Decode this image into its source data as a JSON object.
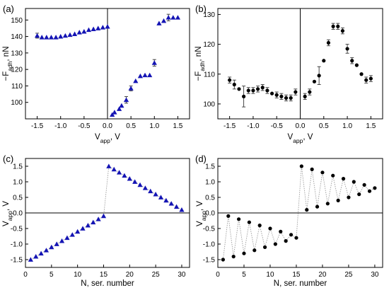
{
  "chart_data": [
    {
      "id": "a",
      "panel_label": "(a)",
      "type": "scatter",
      "marker": "triangle",
      "color": "#1414b4",
      "xlabel": {
        "base": "V",
        "sub": "app",
        "rest": ", V"
      },
      "ylabel": {
        "base": "−F",
        "sub": "adh",
        "rest": ", nN"
      },
      "xlim": [
        -1.75,
        1.75
      ],
      "ylim": [
        90,
        157
      ],
      "xticks": [
        -1.5,
        -1.0,
        -0.5,
        0.0,
        0.5,
        1.0,
        1.5
      ],
      "xtick_labels": [
        "-1.5",
        "-1.0",
        "-0.5",
        "0.0",
        "0.5",
        "1.0",
        "1.5"
      ],
      "yticks": [
        100,
        110,
        120,
        130,
        140,
        150
      ],
      "ytick_labels": [
        "100",
        "110",
        "120",
        "130",
        "140",
        "150"
      ],
      "zero_lines": {
        "vertical": 0
      },
      "connect_points": false,
      "points": [
        {
          "x": -1.5,
          "y": 140.5,
          "err": 1.5
        },
        {
          "x": -1.4,
          "y": 139.5
        },
        {
          "x": -1.3,
          "y": 139.5
        },
        {
          "x": -1.2,
          "y": 139.5
        },
        {
          "x": -1.1,
          "y": 139.5
        },
        {
          "x": -1.0,
          "y": 140.0
        },
        {
          "x": -0.9,
          "y": 140.5
        },
        {
          "x": -0.8,
          "y": 141.0
        },
        {
          "x": -0.7,
          "y": 141.5
        },
        {
          "x": -0.6,
          "y": 142.5
        },
        {
          "x": -0.5,
          "y": 143.0
        },
        {
          "x": -0.4,
          "y": 144.0
        },
        {
          "x": -0.3,
          "y": 144.5
        },
        {
          "x": -0.2,
          "y": 145.0
        },
        {
          "x": -0.1,
          "y": 145.5
        },
        {
          "x": 0.0,
          "y": 146.0
        },
        {
          "x": 0.1,
          "y": 92.5
        },
        {
          "x": 0.15,
          "y": 94.0
        },
        {
          "x": 0.25,
          "y": 96.0
        },
        {
          "x": 0.3,
          "y": 98.0
        },
        {
          "x": 0.4,
          "y": 101.5,
          "err": 2.0
        },
        {
          "x": 0.5,
          "y": 108.5,
          "err": 1.5
        },
        {
          "x": 0.6,
          "y": 113.0
        },
        {
          "x": 0.7,
          "y": 116.0
        },
        {
          "x": 0.8,
          "y": 116.5
        },
        {
          "x": 0.9,
          "y": 116.5
        },
        {
          "x": 1.0,
          "y": 124.0,
          "err": 2.0
        },
        {
          "x": 1.1,
          "y": 148.0
        },
        {
          "x": 1.2,
          "y": 149.5
        },
        {
          "x": 1.3,
          "y": 151.5,
          "err": 2.0
        },
        {
          "x": 1.4,
          "y": 151.5
        },
        {
          "x": 1.5,
          "y": 151.5
        }
      ]
    },
    {
      "id": "b",
      "panel_label": "(b)",
      "type": "scatter",
      "marker": "circle",
      "color": "#000000",
      "xlabel": {
        "base": "V",
        "sub": "app",
        "rest": ", V"
      },
      "ylabel": {
        "base": "−F",
        "sub": "adh",
        "rest": ", nN"
      },
      "xlim": [
        -1.75,
        1.75
      ],
      "ylim": [
        95,
        132
      ],
      "xticks": [
        -1.5,
        -1.0,
        -0.5,
        0.0,
        0.5,
        1.0,
        1.5
      ],
      "xtick_labels": [
        "-1.5",
        "-1.0",
        "-0.5",
        "0.0",
        "0.5",
        "1.0",
        "1.5"
      ],
      "yticks": [
        100,
        110,
        120,
        130
      ],
      "ytick_labels": [
        "100",
        "110",
        "120",
        "130"
      ],
      "zero_lines": {
        "vertical": 0
      },
      "connect_points": false,
      "points": [
        {
          "x": -1.5,
          "y": 108.0,
          "err": 1.0
        },
        {
          "x": -1.4,
          "y": 106.5,
          "err": 1.5
        },
        {
          "x": -1.3,
          "y": 105.0
        },
        {
          "x": -1.2,
          "y": 102.5,
          "err": 3.5
        },
        {
          "x": -1.1,
          "y": 104.5,
          "err": 1.0
        },
        {
          "x": -1.0,
          "y": 104.5,
          "err": 1.0
        },
        {
          "x": -0.9,
          "y": 105.0,
          "err": 1.0
        },
        {
          "x": -0.8,
          "y": 105.5,
          "err": 1.0
        },
        {
          "x": -0.7,
          "y": 104.5,
          "err": 1.0
        },
        {
          "x": -0.6,
          "y": 103.5
        },
        {
          "x": -0.5,
          "y": 103.0,
          "err": 1.0
        },
        {
          "x": -0.4,
          "y": 102.5,
          "err": 1.0
        },
        {
          "x": -0.3,
          "y": 102.0,
          "err": 1.0
        },
        {
          "x": -0.2,
          "y": 102.0,
          "err": 1.0
        },
        {
          "x": -0.1,
          "y": 104.0,
          "err": 1.0
        },
        {
          "x": 0.1,
          "y": 102.5,
          "err": 1.0
        },
        {
          "x": 0.2,
          "y": 104.0,
          "err": 1.0
        },
        {
          "x": 0.3,
          "y": 107.5
        },
        {
          "x": 0.4,
          "y": 109.5,
          "err": 3.0
        },
        {
          "x": 0.5,
          "y": 114.5
        },
        {
          "x": 0.6,
          "y": 120.5,
          "err": 1.0
        },
        {
          "x": 0.7,
          "y": 126.0,
          "err": 1.0
        },
        {
          "x": 0.8,
          "y": 126.0,
          "err": 1.0
        },
        {
          "x": 0.9,
          "y": 124.5,
          "err": 1.0
        },
        {
          "x": 1.0,
          "y": 118.5,
          "err": 1.5
        },
        {
          "x": 1.1,
          "y": 114.5,
          "err": 1.0
        },
        {
          "x": 1.2,
          "y": 113.0
        },
        {
          "x": 1.3,
          "y": 110.0
        },
        {
          "x": 1.4,
          "y": 108.0,
          "err": 1.0
        },
        {
          "x": 1.5,
          "y": 108.5,
          "err": 1.0
        }
      ]
    },
    {
      "id": "c",
      "panel_label": "(c)",
      "type": "line",
      "marker": "triangle",
      "color": "#1414b4",
      "line_color": "#9a9a9a",
      "xlabel": {
        "base": "N, ser. number",
        "sub": "",
        "rest": ""
      },
      "ylabel": {
        "base": "V",
        "sub": "app",
        "rest": ", V"
      },
      "xlim": [
        0,
        31.5
      ],
      "ylim": [
        -1.75,
        1.75
      ],
      "xticks": [
        0,
        5,
        10,
        15,
        20,
        25,
        30
      ],
      "xtick_labels": [
        "0",
        "5",
        "10",
        "15",
        "20",
        "25",
        "30"
      ],
      "yticks": [
        -1.5,
        -1.0,
        -0.5,
        0.0,
        0.5,
        1.0,
        1.5
      ],
      "ytick_labels": [
        "-1.5",
        "-1.0",
        "-0.5",
        "0.0",
        "0.5",
        "1.0",
        "1.5"
      ],
      "zero_lines": {
        "horizontal": 0
      },
      "connect_points": true,
      "points": [
        {
          "x": 1,
          "y": -1.5
        },
        {
          "x": 2,
          "y": -1.4
        },
        {
          "x": 3,
          "y": -1.3
        },
        {
          "x": 4,
          "y": -1.2
        },
        {
          "x": 5,
          "y": -1.1
        },
        {
          "x": 6,
          "y": -1.0
        },
        {
          "x": 7,
          "y": -0.9
        },
        {
          "x": 8,
          "y": -0.8
        },
        {
          "x": 9,
          "y": -0.7
        },
        {
          "x": 10,
          "y": -0.6
        },
        {
          "x": 11,
          "y": -0.5
        },
        {
          "x": 12,
          "y": -0.4
        },
        {
          "x": 13,
          "y": -0.3
        },
        {
          "x": 14,
          "y": -0.2
        },
        {
          "x": 15,
          "y": -0.1
        },
        {
          "x": 16,
          "y": 1.5
        },
        {
          "x": 17,
          "y": 1.4
        },
        {
          "x": 18,
          "y": 1.3
        },
        {
          "x": 19,
          "y": 1.2
        },
        {
          "x": 20,
          "y": 1.1
        },
        {
          "x": 21,
          "y": 1.0
        },
        {
          "x": 22,
          "y": 0.9
        },
        {
          "x": 23,
          "y": 0.8
        },
        {
          "x": 24,
          "y": 0.7
        },
        {
          "x": 25,
          "y": 0.6
        },
        {
          "x": 26,
          "y": 0.5
        },
        {
          "x": 27,
          "y": 0.4
        },
        {
          "x": 28,
          "y": 0.3
        },
        {
          "x": 29,
          "y": 0.2
        },
        {
          "x": 30,
          "y": 0.1
        }
      ]
    },
    {
      "id": "d",
      "panel_label": "(d)",
      "type": "line",
      "marker": "circle",
      "color": "#000000",
      "line_color": "#9a9a9a",
      "xlabel": {
        "base": "N, ser. number",
        "sub": "",
        "rest": ""
      },
      "ylabel": {
        "base": "V",
        "sub": "app",
        "rest": ", V"
      },
      "xlim": [
        0,
        31.5
      ],
      "ylim": [
        -1.75,
        1.75
      ],
      "xticks": [
        0,
        5,
        10,
        15,
        20,
        25,
        30
      ],
      "xtick_labels": [
        "0",
        "5",
        "10",
        "15",
        "20",
        "25",
        "30"
      ],
      "yticks": [
        -1.5,
        -1.0,
        -0.5,
        0.0,
        0.5,
        1.0,
        1.5
      ],
      "ytick_labels": [
        "-1.5",
        "-1.0",
        "-0.5",
        "0.0",
        "0.5",
        "1.0",
        "1.5"
      ],
      "zero_lines": {
        "horizontal": 0
      },
      "connect_points": true,
      "points": [
        {
          "x": 1,
          "y": -1.5
        },
        {
          "x": 2,
          "y": -0.1
        },
        {
          "x": 3,
          "y": -1.4
        },
        {
          "x": 4,
          "y": -0.2
        },
        {
          "x": 5,
          "y": -1.3
        },
        {
          "x": 6,
          "y": -0.3
        },
        {
          "x": 7,
          "y": -1.2
        },
        {
          "x": 8,
          "y": -0.4
        },
        {
          "x": 9,
          "y": -1.1
        },
        {
          "x": 10,
          "y": -0.5
        },
        {
          "x": 11,
          "y": -1.0
        },
        {
          "x": 12,
          "y": -0.6
        },
        {
          "x": 13,
          "y": -0.9
        },
        {
          "x": 14,
          "y": -0.7
        },
        {
          "x": 15,
          "y": -0.8
        },
        {
          "x": 16,
          "y": 1.5
        },
        {
          "x": 17,
          "y": 0.1
        },
        {
          "x": 18,
          "y": 1.4
        },
        {
          "x": 19,
          "y": 0.2
        },
        {
          "x": 20,
          "y": 1.3
        },
        {
          "x": 21,
          "y": 0.3
        },
        {
          "x": 22,
          "y": 1.2
        },
        {
          "x": 23,
          "y": 0.4
        },
        {
          "x": 24,
          "y": 1.1
        },
        {
          "x": 25,
          "y": 0.5
        },
        {
          "x": 26,
          "y": 1.0
        },
        {
          "x": 27,
          "y": 0.6
        },
        {
          "x": 28,
          "y": 0.9
        },
        {
          "x": 29,
          "y": 0.7
        },
        {
          "x": 30,
          "y": 0.8
        }
      ]
    }
  ]
}
